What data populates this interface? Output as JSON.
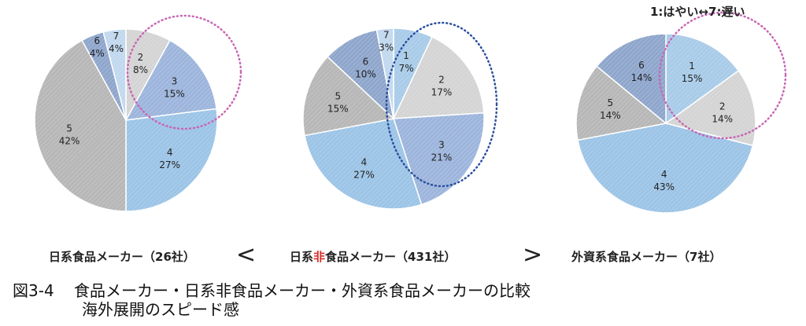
{
  "legend_note": "1:はやい↔7:遅い",
  "chart_data": [
    {
      "type": "pie",
      "label_parts": [
        "日系食品メーカー（26社）"
      ],
      "slices": [
        {
          "category": "1",
          "value": 0
        },
        {
          "category": "2",
          "value": 8
        },
        {
          "category": "3",
          "value": 15
        },
        {
          "category": "4",
          "value": 27
        },
        {
          "category": "5",
          "value": 42
        },
        {
          "category": "6",
          "value": 4
        },
        {
          "category": "7",
          "value": 4
        }
      ]
    },
    {
      "type": "pie",
      "label_parts": [
        "日系",
        "非",
        "食品メーカー（431社）"
      ],
      "slices": [
        {
          "category": "1",
          "value": 7
        },
        {
          "category": "2",
          "value": 17
        },
        {
          "category": "3",
          "value": 21
        },
        {
          "category": "4",
          "value": 27
        },
        {
          "category": "5",
          "value": 15
        },
        {
          "category": "6",
          "value": 10
        },
        {
          "category": "7",
          "value": 3
        }
      ]
    },
    {
      "type": "pie",
      "label_parts": [
        "外資系食品メーカー（7社）"
      ],
      "slices": [
        {
          "category": "1",
          "value": 15
        },
        {
          "category": "2",
          "value": 14
        },
        {
          "category": "4",
          "value": 43
        },
        {
          "category": "5",
          "value": 14
        },
        {
          "category": "6",
          "value": 14
        }
      ]
    }
  ],
  "comparators": [
    "<",
    ">"
  ],
  "caption": {
    "number": "図3-4",
    "line1": "食品メーカー・日系非食品メーカー・外資系食品メーカーの比較",
    "line2": "海外展開のスピード感"
  },
  "colors": {
    "1": "#a8cbe8",
    "2": "#d4d4d4",
    "3": "#9db5dc",
    "4": "#9cc4e6",
    "5": "#b7b7b7",
    "6": "#8fa6cc",
    "7": "#c1d8ee",
    "highlight_pink": "#c966b4",
    "highlight_blue": "#2a4f9e",
    "accent_red": "#d9302c"
  }
}
